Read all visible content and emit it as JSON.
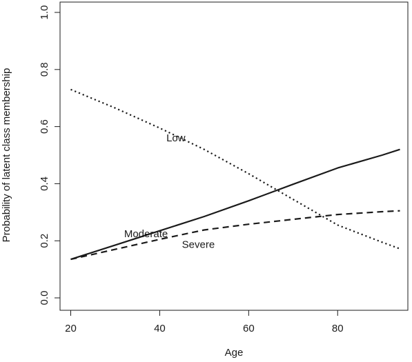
{
  "chart_data": {
    "type": "line",
    "xlabel": "Age",
    "ylabel": "Probability of latent class membership",
    "xlim": [
      20,
      94
    ],
    "ylim": [
      0,
      1
    ],
    "x_ticks": [
      20,
      40,
      60,
      80
    ],
    "y_ticks": [
      0.0,
      0.2,
      0.4,
      0.6,
      0.8,
      1.0
    ],
    "y_tick_labels": [
      "0.0",
      "0.2",
      "0.4",
      "0.6",
      "0.8",
      "1.0"
    ],
    "grid": false,
    "legend": "none",
    "series": [
      {
        "name": "Low",
        "style": "dotted",
        "x": [
          20,
          30,
          40,
          50,
          60,
          70,
          80,
          90,
          94
        ],
        "y": [
          0.73,
          0.665,
          0.595,
          0.52,
          0.435,
          0.345,
          0.255,
          0.195,
          0.172
        ]
      },
      {
        "name": "Moderate",
        "style": "solid",
        "x": [
          20,
          30,
          40,
          50,
          60,
          70,
          80,
          90,
          94
        ],
        "y": [
          0.135,
          0.185,
          0.235,
          0.285,
          0.34,
          0.398,
          0.455,
          0.5,
          0.52
        ]
      },
      {
        "name": "Severe",
        "style": "dashed",
        "x": [
          20,
          30,
          40,
          50,
          60,
          70,
          80,
          90,
          94
        ],
        "y": [
          0.135,
          0.17,
          0.205,
          0.238,
          0.258,
          0.275,
          0.292,
          0.302,
          0.305
        ]
      }
    ],
    "annotations": [
      {
        "text": "Low",
        "x": 41.5,
        "y": 0.548
      },
      {
        "text": "Moderate",
        "x": 32,
        "y": 0.213
      },
      {
        "text": "Severe",
        "x": 45,
        "y": 0.175
      }
    ],
    "colors": {
      "line": "#1a1a1a",
      "axis": "#1a1a1a",
      "background": "#ffffff"
    }
  }
}
